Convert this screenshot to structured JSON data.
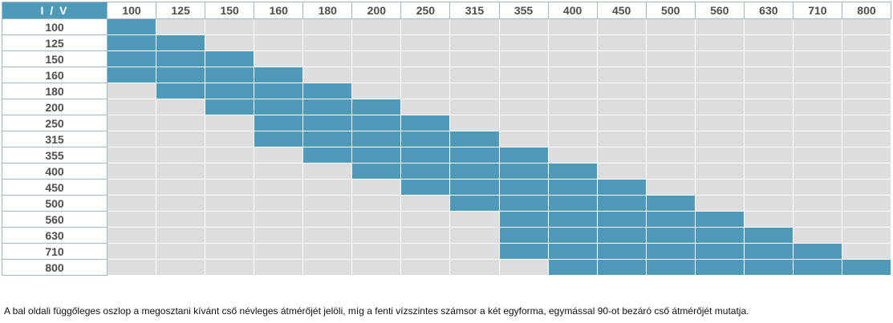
{
  "table": {
    "corner_label": "I  /  V",
    "columns": [
      "100",
      "125",
      "150",
      "160",
      "180",
      "200",
      "250",
      "315",
      "355",
      "400",
      "450",
      "500",
      "560",
      "630",
      "710",
      "800"
    ],
    "rows": [
      {
        "label": "100",
        "compatible": [
          "100"
        ]
      },
      {
        "label": "125",
        "compatible": [
          "100",
          "125"
        ]
      },
      {
        "label": "150",
        "compatible": [
          "100",
          "125",
          "150"
        ]
      },
      {
        "label": "160",
        "compatible": [
          "100",
          "125",
          "150",
          "160"
        ]
      },
      {
        "label": "180",
        "compatible": [
          "125",
          "150",
          "160",
          "180"
        ]
      },
      {
        "label": "200",
        "compatible": [
          "150",
          "160",
          "180",
          "200"
        ]
      },
      {
        "label": "250",
        "compatible": [
          "160",
          "180",
          "200",
          "250"
        ]
      },
      {
        "label": "315",
        "compatible": [
          "160",
          "180",
          "200",
          "250",
          "315"
        ]
      },
      {
        "label": "355",
        "compatible": [
          "180",
          "200",
          "250",
          "315",
          "355"
        ]
      },
      {
        "label": "400",
        "compatible": [
          "200",
          "250",
          "315",
          "355",
          "400"
        ]
      },
      {
        "label": "450",
        "compatible": [
          "250",
          "315",
          "355",
          "400",
          "450"
        ]
      },
      {
        "label": "500",
        "compatible": [
          "315",
          "355",
          "400",
          "450",
          "500"
        ]
      },
      {
        "label": "560",
        "compatible": [
          "355",
          "400",
          "450",
          "500",
          "560"
        ]
      },
      {
        "label": "630",
        "compatible": [
          "355",
          "400",
          "450",
          "500",
          "560",
          "630"
        ]
      },
      {
        "label": "710",
        "compatible": [
          "355",
          "400",
          "450",
          "500",
          "560",
          "630",
          "710"
        ]
      },
      {
        "label": "800",
        "compatible": [
          "400",
          "450",
          "500",
          "560",
          "630",
          "710",
          "800"
        ]
      }
    ],
    "colors": {
      "filled": "#4e9ab8",
      "empty": "#dddddd",
      "header_text": "#4d4d4d"
    }
  },
  "caption": "A bal oldali függőleges oszlop a megosztani kívánt cső névleges átmérőjét jelöli, míg a fenti vízszintes számsor a két egyforma, egymással 90-ot bezáró cső átmérőjét mutatja."
}
